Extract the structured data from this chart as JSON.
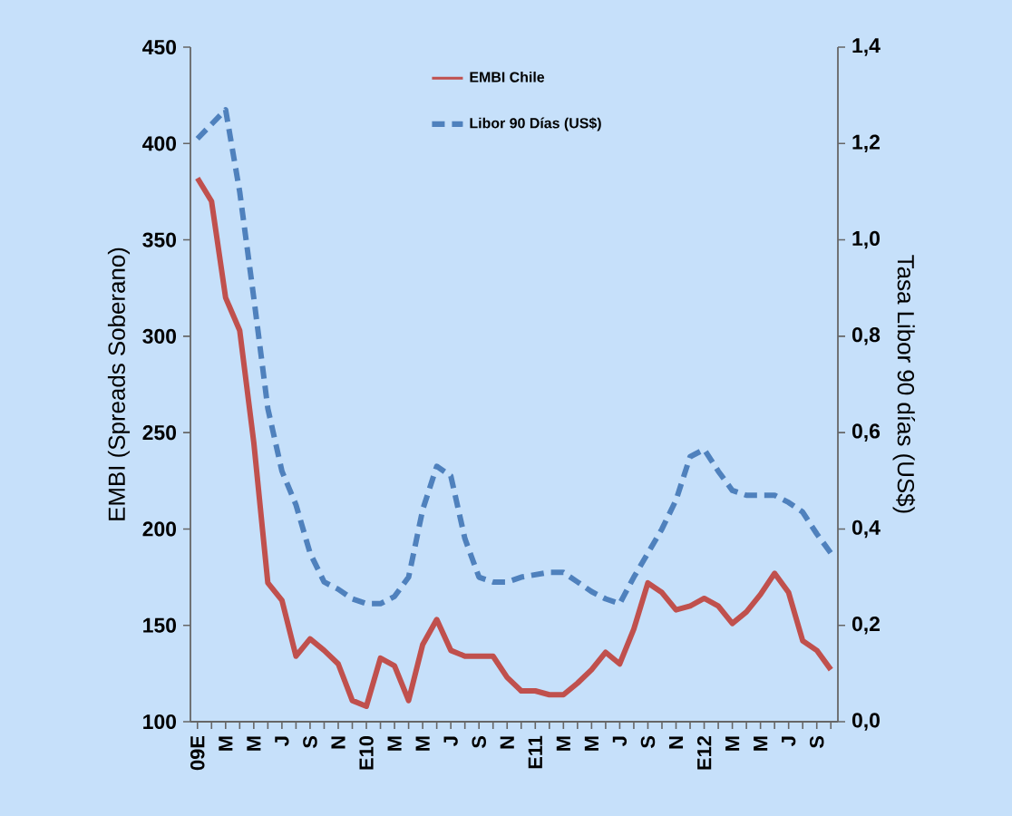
{
  "chart_data": {
    "type": "line",
    "categories": [
      "09E",
      null,
      "M",
      null,
      "M",
      null,
      "J",
      null,
      "S",
      null,
      "N",
      null,
      "E10",
      null,
      "M",
      null,
      "M",
      null,
      "J",
      null,
      "S",
      null,
      "N",
      null,
      "E11",
      null,
      "M",
      null,
      "M",
      null,
      "J",
      null,
      "S",
      null,
      "N",
      null,
      "E12",
      null,
      "M",
      null,
      "M",
      null,
      "J",
      null,
      "S",
      null
    ],
    "series": [
      {
        "name": "EMBI Chile",
        "color": "#c0504d",
        "line_style": "solid",
        "values": [
          382,
          370,
          320,
          303,
          245,
          172,
          163,
          134,
          143,
          137,
          130,
          111,
          108,
          133,
          129,
          111,
          140,
          153,
          137,
          134,
          134,
          134,
          123,
          116,
          116,
          114,
          114,
          120,
          127,
          136,
          130,
          148,
          172,
          167,
          158,
          160,
          164,
          160,
          151,
          157,
          166,
          177,
          167,
          142,
          137,
          127
        ]
      },
      {
        "name": "Libor 90 Días (US$)",
        "color": "#4f81bd",
        "line_style": "dashed",
        "axis": "y2",
        "values": [
          1.21,
          1.24,
          1.27,
          1.1,
          0.88,
          0.65,
          0.52,
          0.45,
          0.35,
          0.29,
          0.275,
          0.255,
          0.245,
          0.245,
          0.26,
          0.3,
          0.44,
          0.53,
          0.51,
          0.38,
          0.3,
          0.29,
          0.29,
          0.3,
          0.305,
          0.31,
          0.31,
          0.29,
          0.27,
          0.255,
          0.245,
          0.3,
          0.35,
          0.4,
          0.46,
          0.55,
          0.565,
          0.52,
          0.48,
          0.47,
          0.47,
          0.47,
          0.455,
          0.435,
          0.39,
          0.35
        ]
      }
    ],
    "ylabel": "EMBI (Spreads Soberano)",
    "y2label": "Tasa Libor 90 días (US$)",
    "ylim": [
      100,
      450
    ],
    "yticks": [
      100,
      150,
      200,
      250,
      300,
      350,
      400,
      450
    ],
    "y2lim": [
      0,
      1.4
    ],
    "y2ticks": [
      {
        "value": 0,
        "label": "0,0"
      },
      {
        "value": 0.2,
        "label": "0,2"
      },
      {
        "value": 0.4,
        "label": "0,4"
      },
      {
        "value": 0.6,
        "label": "0,6"
      },
      {
        "value": 0.8,
        "label": "0,8"
      },
      {
        "value": 1.0,
        "label": "1,0"
      },
      {
        "value": 1.2,
        "label": "1,2"
      },
      {
        "value": 1.4,
        "label": "1,4"
      }
    ],
    "legend": "top"
  }
}
